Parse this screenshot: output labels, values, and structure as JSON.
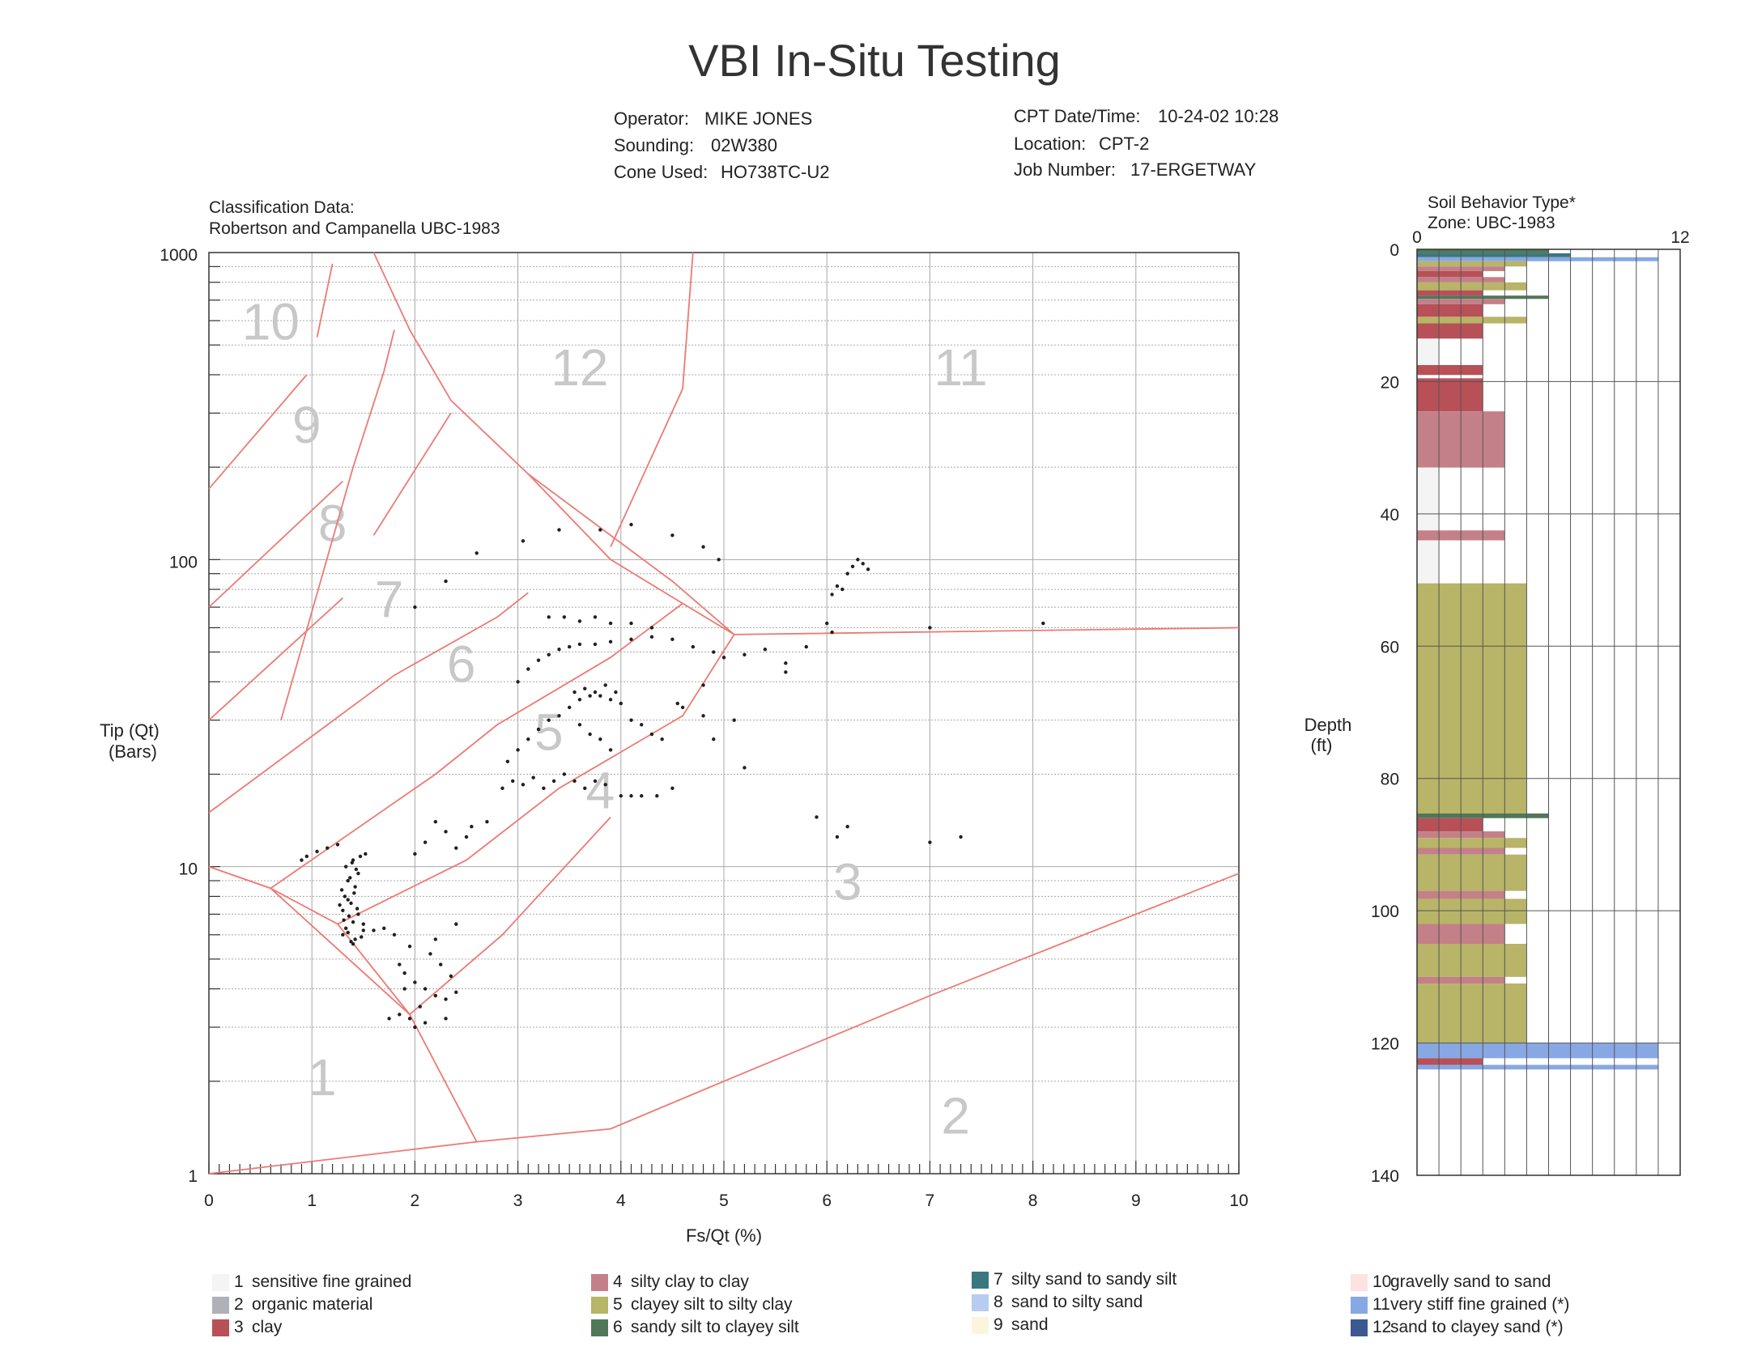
{
  "header": {
    "title": "VBI In-Situ Testing",
    "operator_label": "Operator:",
    "operator": "MIKE JONES",
    "sounding_label": "Sounding:",
    "sounding": "02W380",
    "cone_label": "Cone Used:",
    "cone": "HO738TC-U2",
    "date_label": "CPT Date/Time:",
    "date": "10-24-02 10:28",
    "location_label": "Location:",
    "location": "CPT-2",
    "job_label": "Job Number:",
    "job": "17-ERGETWAY"
  },
  "classification": {
    "line1": "Classification Data:",
    "line2": "Robertson and Campanella UBC-1983"
  },
  "chart_data": [
    {
      "type": "scatter",
      "xlabel": "Fs/Qt (%)",
      "ylabel": "Tip (Qt)",
      "ylabel_unit": "(Bars)",
      "x_scale": "linear",
      "xlim": [
        0,
        10
      ],
      "y_scale": "log",
      "ylim": [
        1,
        1000
      ],
      "x_ticks": [
        "0",
        "1",
        "2",
        "3",
        "4",
        "5",
        "6",
        "7",
        "8",
        "9",
        "10"
      ],
      "y_ticks": [
        "1",
        "10",
        "100",
        "1000"
      ],
      "grid": true,
      "zones": [
        {
          "name": "1",
          "x": 1.1,
          "y": 1.8
        },
        {
          "name": "2",
          "x": 7.25,
          "y": 1.35
        },
        {
          "name": "3",
          "x": 6.2,
          "y": 7.8
        },
        {
          "name": "4",
          "x": 3.8,
          "y": 15.5
        },
        {
          "name": "5",
          "x": 3.3,
          "y": 24
        },
        {
          "name": "6",
          "x": 2.45,
          "y": 40
        },
        {
          "name": "7",
          "x": 1.75,
          "y": 65
        },
        {
          "name": "8",
          "x": 1.2,
          "y": 115
        },
        {
          "name": "9",
          "x": 0.95,
          "y": 240
        },
        {
          "name": "10",
          "x": 0.6,
          "y": 520
        },
        {
          "name": "11",
          "x": 7.3,
          "y": 370
        },
        {
          "name": "12",
          "x": 3.6,
          "y": 370
        }
      ],
      "boundaries": [
        [
          [
            0,
            10
          ],
          [
            0.6,
            8.5
          ],
          [
            1.25,
            6.5
          ],
          [
            1.95,
            3.3
          ],
          [
            2.6,
            1.27
          ]
        ],
        [
          [
            0,
            1
          ],
          [
            2.6,
            1.27
          ],
          [
            3.9,
            1.4
          ],
          [
            5.0,
            2.0
          ],
          [
            7.0,
            3.8
          ],
          [
            10,
            9.5
          ]
        ],
        [
          [
            0,
            10
          ],
          [
            0.6,
            8.5
          ],
          [
            1.95,
            3.3
          ]
        ],
        [
          [
            1.95,
            3.3
          ],
          [
            2.85,
            6.0
          ],
          [
            3.9,
            14.5
          ]
        ],
        [
          [
            1.25,
            6.5
          ],
          [
            2.5,
            10.5
          ],
          [
            3.4,
            18
          ],
          [
            4.6,
            31
          ],
          [
            5.1,
            57
          ]
        ],
        [
          [
            0.6,
            8.5
          ],
          [
            2.2,
            20
          ],
          [
            2.8,
            29
          ],
          [
            3.9,
            48
          ],
          [
            4.6,
            72
          ]
        ],
        [
          [
            0,
            15
          ],
          [
            1.8,
            42
          ],
          [
            2.8,
            65
          ],
          [
            3.1,
            78
          ]
        ],
        [
          [
            0,
            30
          ],
          [
            1.3,
            75
          ]
        ],
        [
          [
            0,
            70
          ],
          [
            1.3,
            180
          ]
        ],
        [
          [
            0,
            170
          ],
          [
            0.95,
            400
          ]
        ],
        [
          [
            1.05,
            530
          ],
          [
            1.2,
            920
          ]
        ],
        [
          [
            1.6,
            1000
          ],
          [
            1.95,
            560
          ],
          [
            2.35,
            330
          ],
          [
            3.1,
            190
          ],
          [
            4.5,
            85
          ],
          [
            5.1,
            57
          ],
          [
            10,
            60
          ]
        ],
        [
          [
            3.1,
            190
          ],
          [
            3.9,
            100
          ],
          [
            4.6,
            72
          ],
          [
            5.1,
            57
          ]
        ],
        [
          [
            3.9,
            110
          ],
          [
            4.6,
            360
          ],
          [
            4.7,
            1000
          ]
        ],
        [
          [
            1.6,
            120
          ],
          [
            2.35,
            300
          ]
        ],
        [
          [
            0.7,
            30
          ],
          [
            1.4,
            200
          ],
          [
            1.7,
            410
          ],
          [
            1.8,
            560
          ]
        ]
      ],
      "points": [
        [
          1.4,
          10.5
        ],
        [
          1.45,
          9.5
        ],
        [
          1.35,
          9.0
        ],
        [
          1.42,
          8.6
        ],
        [
          1.32,
          8.0
        ],
        [
          1.38,
          7.6
        ],
        [
          1.3,
          7.2
        ],
        [
          1.36,
          6.9
        ],
        [
          1.4,
          6.6
        ],
        [
          1.33,
          6.3
        ],
        [
          1.3,
          6.0
        ],
        [
          1.42,
          5.8
        ],
        [
          1.48,
          5.9
        ],
        [
          1.35,
          7.8
        ],
        [
          1.41,
          8.2
        ],
        [
          1.29,
          8.4
        ],
        [
          1.45,
          7.0
        ],
        [
          1.5,
          6.2
        ],
        [
          1.38,
          5.7
        ],
        [
          1.31,
          6.7
        ],
        [
          1.37,
          9.2
        ],
        [
          1.43,
          9.8
        ],
        [
          1.33,
          10.0
        ],
        [
          1.39,
          10.3
        ],
        [
          1.47,
          10.8
        ],
        [
          1.52,
          11.0
        ],
        [
          1.27,
          7.5
        ],
        [
          1.44,
          7.3
        ],
        [
          1.35,
          6.1
        ],
        [
          1.4,
          5.6
        ],
        [
          0.9,
          10.5
        ],
        [
          0.95,
          10.8
        ],
        [
          1.05,
          11.2
        ],
        [
          1.15,
          11.5
        ],
        [
          1.25,
          11.8
        ],
        [
          1.5,
          6.5
        ],
        [
          1.6,
          6.2
        ],
        [
          1.7,
          6.3
        ],
        [
          1.8,
          6.0
        ],
        [
          1.85,
          4.8
        ],
        [
          1.9,
          4.5
        ],
        [
          2.0,
          4.2
        ],
        [
          2.1,
          4.0
        ],
        [
          2.2,
          3.8
        ],
        [
          2.3,
          3.7
        ],
        [
          2.4,
          3.9
        ],
        [
          2.35,
          4.4
        ],
        [
          2.25,
          4.8
        ],
        [
          2.15,
          5.2
        ],
        [
          1.95,
          5.5
        ],
        [
          2.05,
          3.5
        ],
        [
          1.95,
          3.2
        ],
        [
          1.85,
          3.3
        ],
        [
          1.75,
          3.2
        ],
        [
          2.0,
          3.0
        ],
        [
          2.1,
          3.1
        ],
        [
          2.3,
          3.2
        ],
        [
          2.2,
          5.8
        ],
        [
          2.4,
          6.5
        ],
        [
          1.9,
          4.0
        ],
        [
          2.4,
          11.5
        ],
        [
          2.55,
          13.5
        ],
        [
          2.7,
          14
        ],
        [
          2.5,
          12.5
        ],
        [
          2.3,
          13.0
        ],
        [
          2.1,
          12.0
        ],
        [
          2.0,
          11.0
        ],
        [
          2.2,
          14.0
        ],
        [
          2.85,
          18
        ],
        [
          2.95,
          19
        ],
        [
          3.05,
          18.5
        ],
        [
          3.15,
          19.5
        ],
        [
          3.25,
          18
        ],
        [
          3.35,
          19
        ],
        [
          3.45,
          20
        ],
        [
          3.55,
          19
        ],
        [
          3.65,
          18
        ],
        [
          3.75,
          19
        ],
        [
          3.85,
          18.5
        ],
        [
          4.0,
          17
        ],
        [
          4.1,
          17
        ],
        [
          4.2,
          17
        ],
        [
          4.35,
          17
        ],
        [
          4.5,
          18
        ],
        [
          2.9,
          22
        ],
        [
          3.0,
          24
        ],
        [
          3.1,
          26
        ],
        [
          3.2,
          28
        ],
        [
          3.3,
          30
        ],
        [
          3.4,
          31
        ],
        [
          3.5,
          33
        ],
        [
          3.6,
          35
        ],
        [
          3.7,
          36
        ],
        [
          3.8,
          36
        ],
        [
          3.9,
          35
        ],
        [
          4.0,
          34
        ],
        [
          4.1,
          30
        ],
        [
          4.2,
          29
        ],
        [
          4.3,
          27
        ],
        [
          4.4,
          26
        ],
        [
          3.55,
          37
        ],
        [
          3.65,
          38
        ],
        [
          3.75,
          37
        ],
        [
          3.85,
          39
        ],
        [
          3.95,
          37
        ],
        [
          3.6,
          29
        ],
        [
          3.7,
          27
        ],
        [
          3.8,
          26
        ],
        [
          3.9,
          24
        ],
        [
          3.0,
          40
        ],
        [
          3.1,
          44
        ],
        [
          3.2,
          47
        ],
        [
          3.3,
          49
        ],
        [
          3.4,
          51
        ],
        [
          3.5,
          52
        ],
        [
          3.6,
          53
        ],
        [
          3.75,
          53
        ],
        [
          3.9,
          54
        ],
        [
          4.1,
          55
        ],
        [
          4.3,
          56
        ],
        [
          3.3,
          65
        ],
        [
          3.45,
          65
        ],
        [
          3.6,
          63
        ],
        [
          3.75,
          65
        ],
        [
          3.9,
          62
        ],
        [
          4.1,
          62
        ],
        [
          4.3,
          60
        ],
        [
          4.5,
          55
        ],
        [
          4.7,
          52
        ],
        [
          4.9,
          50
        ],
        [
          5.0,
          48
        ],
        [
          5.2,
          49
        ],
        [
          5.4,
          51
        ],
        [
          5.6,
          46
        ],
        [
          5.8,
          52
        ],
        [
          4.55,
          34
        ],
        [
          4.6,
          33
        ],
        [
          4.8,
          39
        ],
        [
          5.1,
          30
        ],
        [
          3.05,
          115
        ],
        [
          3.4,
          125
        ],
        [
          3.8,
          125
        ],
        [
          4.1,
          130
        ],
        [
          4.5,
          120
        ],
        [
          4.8,
          110
        ],
        [
          4.95,
          100
        ],
        [
          2.6,
          105
        ],
        [
          2.3,
          85
        ],
        [
          2.0,
          70
        ],
        [
          6.1,
          82
        ],
        [
          6.15,
          80
        ],
        [
          6.2,
          90
        ],
        [
          6.25,
          95
        ],
        [
          6.3,
          100
        ],
        [
          6.35,
          97
        ],
        [
          6.4,
          93
        ],
        [
          6.05,
          77
        ],
        [
          6.0,
          62
        ],
        [
          6.05,
          58
        ],
        [
          7.0,
          60
        ],
        [
          8.1,
          62
        ],
        [
          5.9,
          14.5
        ],
        [
          6.2,
          13.5
        ],
        [
          6.1,
          12.5
        ],
        [
          7.0,
          12.0
        ],
        [
          7.3,
          12.5
        ],
        [
          5.2,
          21
        ],
        [
          4.9,
          26
        ],
        [
          4.8,
          31
        ],
        [
          5.6,
          43
        ]
      ]
    },
    {
      "type": "bar",
      "orientation": "horizontal-strip",
      "title": "Soil Behavior Type*",
      "subtitle": "Zone: UBC-1983",
      "ylabel": "Depth",
      "ylabel_unit": "(ft)",
      "xlim": [
        0,
        12
      ],
      "ylim": [
        0,
        140
      ],
      "x_ticks": [
        "0",
        "12"
      ],
      "y_ticks": [
        "0",
        "20",
        "40",
        "60",
        "80",
        "100",
        "120",
        "140"
      ],
      "layers": [
        {
          "top": 0,
          "bottom": 0.6,
          "zone": 6
        },
        {
          "top": 0.6,
          "bottom": 1.2,
          "zone": 7
        },
        {
          "top": 1.2,
          "bottom": 1.8,
          "zone": 11
        },
        {
          "top": 1.8,
          "bottom": 2.6,
          "zone": 5
        },
        {
          "top": 2.6,
          "bottom": 3.3,
          "zone": 4
        },
        {
          "top": 3.3,
          "bottom": 4.2,
          "zone": 3
        },
        {
          "top": 4.2,
          "bottom": 5.0,
          "zone": 4
        },
        {
          "top": 5.0,
          "bottom": 6.2,
          "zone": 5
        },
        {
          "top": 6.2,
          "bottom": 7.0,
          "zone": 3
        },
        {
          "top": 7.0,
          "bottom": 7.5,
          "zone": 6
        },
        {
          "top": 7.5,
          "bottom": 8.3,
          "zone": 4
        },
        {
          "top": 8.3,
          "bottom": 10.2,
          "zone": 3
        },
        {
          "top": 10.2,
          "bottom": 11.2,
          "zone": 5
        },
        {
          "top": 11.2,
          "bottom": 13.5,
          "zone": 3
        },
        {
          "top": 13.5,
          "bottom": 17.5,
          "zone": 1
        },
        {
          "top": 17.5,
          "bottom": 19.0,
          "zone": 3
        },
        {
          "top": 19.5,
          "bottom": 24.5,
          "zone": 3
        },
        {
          "top": 24.5,
          "bottom": 33.0,
          "zone": 4
        },
        {
          "top": 33.0,
          "bottom": 42.5,
          "zone": 1
        },
        {
          "top": 42.5,
          "bottom": 44.0,
          "zone": 4
        },
        {
          "top": 44.0,
          "bottom": 50.5,
          "zone": 1
        },
        {
          "top": 50.5,
          "bottom": 85.3,
          "zone": 5
        },
        {
          "top": 85.3,
          "bottom": 86.0,
          "zone": 6
        },
        {
          "top": 86.0,
          "bottom": 88.0,
          "zone": 3
        },
        {
          "top": 88.0,
          "bottom": 89.0,
          "zone": 4
        },
        {
          "top": 89.0,
          "bottom": 90.5,
          "zone": 5
        },
        {
          "top": 90.5,
          "bottom": 91.5,
          "zone": 4
        },
        {
          "top": 91.5,
          "bottom": 97.0,
          "zone": 5
        },
        {
          "top": 97.0,
          "bottom": 98.2,
          "zone": 4
        },
        {
          "top": 98.2,
          "bottom": 102.0,
          "zone": 5
        },
        {
          "top": 102.0,
          "bottom": 105.0,
          "zone": 4
        },
        {
          "top": 105.0,
          "bottom": 110.0,
          "zone": 5
        },
        {
          "top": 110.0,
          "bottom": 111.0,
          "zone": 4
        },
        {
          "top": 111.0,
          "bottom": 120.0,
          "zone": 5
        },
        {
          "top": 120.0,
          "bottom": 122.3,
          "zone": 11
        },
        {
          "top": 122.3,
          "bottom": 123.3,
          "zone": 3
        },
        {
          "top": 123.3,
          "bottom": 124.0,
          "zone": 11
        }
      ]
    }
  ],
  "legend": [
    {
      "num": "1",
      "label": "sensitive fine grained",
      "color": "#f4f4f4"
    },
    {
      "num": "2",
      "label": "organic material",
      "color": "#b0b0b8"
    },
    {
      "num": "3",
      "label": "clay",
      "color": "#b85058"
    },
    {
      "num": "4",
      "label": "silty clay to clay",
      "color": "#c48088"
    },
    {
      "num": "5",
      "label": "clayey silt to silty clay",
      "color": "#b8b468"
    },
    {
      "num": "6",
      "label": "sandy silt to clayey silt",
      "color": "#507858"
    },
    {
      "num": "7",
      "label": "silty sand to sandy silt",
      "color": "#3a7880"
    },
    {
      "num": "8",
      "label": "sand to silty sand",
      "color": "#b8ccf0"
    },
    {
      "num": "9",
      "label": "sand",
      "color": "#fbf5dc"
    },
    {
      "num": "10",
      "label": "gravelly sand to sand",
      "color": "#fce2e2"
    },
    {
      "num": "11",
      "label": "very stiff fine grained (*)",
      "color": "#88a8e4"
    },
    {
      "num": "12",
      "label": "sand to clayey sand (*)",
      "color": "#3c5890"
    }
  ],
  "colors": {
    "boundary": "#ec7a74",
    "grid": "#a8a8a8",
    "zone_label": "#c8c8c8",
    "point": "#202020"
  }
}
